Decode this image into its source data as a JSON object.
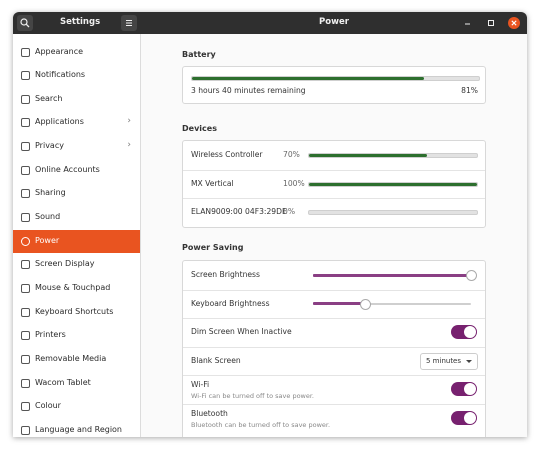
{
  "header": {
    "sidebar_title": "Settings",
    "title": "Power"
  },
  "sidebar": {
    "selected": 8,
    "items": [
      {
        "label": "Appearance"
      },
      {
        "label": "Notifications"
      },
      {
        "label": "Search"
      },
      {
        "label": "Applications",
        "has_submenu": true
      },
      {
        "label": "Privacy",
        "has_submenu": true
      },
      {
        "label": "Online Accounts"
      },
      {
        "label": "Sharing"
      },
      {
        "label": "Sound"
      },
      {
        "label": "Power"
      },
      {
        "label": "Screen Display"
      },
      {
        "label": "Mouse & Touchpad"
      },
      {
        "label": "Keyboard Shortcuts"
      },
      {
        "label": "Printers"
      },
      {
        "label": "Removable Media"
      },
      {
        "label": "Wacom Tablet"
      },
      {
        "label": "Colour"
      },
      {
        "label": "Language and Region"
      }
    ]
  },
  "level_range": [
    0,
    100
  ],
  "battery": {
    "heading": "Battery",
    "status": "3 hours 40 minutes remaining",
    "level": 81,
    "level_label": "81%"
  },
  "devices": {
    "heading": "Devices",
    "items": [
      {
        "name": "Wireless Controller",
        "level": 70,
        "level_label": "70%"
      },
      {
        "name": "MX Vertical",
        "level": 100,
        "level_label": "100%"
      },
      {
        "name": "ELAN9009:00 04F3:29DE",
        "level": 0,
        "level_label": "0%"
      }
    ]
  },
  "power_saving": {
    "heading": "Power Saving",
    "rows": [
      {
        "label": "Screen Brightness",
        "kind": "slider",
        "value": 100
      },
      {
        "label": "Keyboard Brightness",
        "kind": "slider",
        "value": 33
      },
      {
        "label": "Dim Screen When Inactive",
        "kind": "switch",
        "on": true
      },
      {
        "label": "Blank Screen",
        "kind": "dropdown",
        "option": "5 minutes"
      },
      {
        "label": "Wi-Fi",
        "description": "Wi-Fi can be turned off to save power.",
        "kind": "switch",
        "on": true
      },
      {
        "label": "Bluetooth",
        "description": "Bluetooth can be turned off to save power.",
        "kind": "switch",
        "on": true
      }
    ]
  }
}
